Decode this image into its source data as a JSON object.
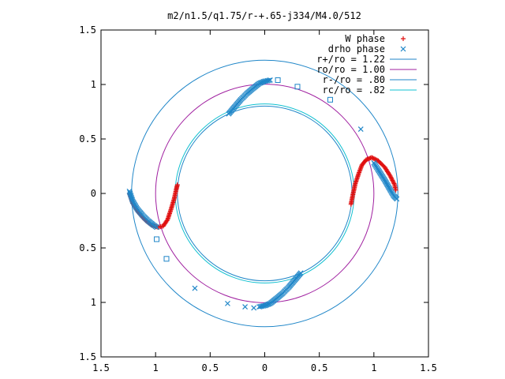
{
  "chart_data": {
    "type": "scatter",
    "title": "m2/n1.5/q1.75/r-+.65-j334/M4.0/512",
    "xlabel": "",
    "ylabel": "",
    "xlim": [
      -1.5,
      1.5
    ],
    "ylim": [
      -1.5,
      1.5
    ],
    "x_ticks": [
      -1.5,
      -1,
      -0.5,
      0,
      0.5,
      1,
      1.5
    ],
    "y_ticks": [
      -1.5,
      -1,
      -0.5,
      0,
      0.5,
      1,
      1.5
    ],
    "x_tick_labels": [
      "1.5",
      "1",
      "0.5",
      "0",
      "0.5",
      "1",
      "1.5"
    ],
    "y_tick_labels": [
      "1.5",
      "1",
      "0.5",
      "0",
      "0.5",
      "1",
      "1.5"
    ],
    "grid": false,
    "legend_position": "top-right",
    "circles": [
      {
        "name": "r+/ro = 1.22",
        "radius": 1.22,
        "color": "#1f86c8"
      },
      {
        "name": "ro/ro = 1.00",
        "radius": 1.0,
        "color": "#a020a0"
      },
      {
        "name": "r-/ro = .80",
        "radius": 0.8,
        "color": "#1f86c8"
      },
      {
        "name": "rc/ro = .82",
        "radius": 0.82,
        "color": "#10c0d0"
      }
    ],
    "series": [
      {
        "name": "W phase",
        "marker": "plus",
        "color": "#e01010",
        "segments": [
          [
            [
              -1.24,
              0.0
            ],
            [
              -1.21,
              -0.09
            ],
            [
              -1.16,
              -0.17
            ],
            [
              -1.1,
              -0.24
            ],
            [
              -1.04,
              -0.29
            ],
            [
              -0.98,
              -0.31
            ],
            [
              -0.93,
              -0.3
            ],
            [
              -0.89,
              -0.24
            ],
            [
              -0.86,
              -0.15
            ],
            [
              -0.83,
              -0.05
            ],
            [
              -0.81,
              0.04
            ],
            [
              -0.8,
              0.08
            ]
          ],
          [
            [
              0.79,
              -0.1
            ],
            [
              0.81,
              -0.0
            ],
            [
              0.83,
              0.09
            ],
            [
              0.86,
              0.18
            ],
            [
              0.89,
              0.26
            ],
            [
              0.93,
              0.31
            ],
            [
              0.98,
              0.33
            ],
            [
              1.04,
              0.3
            ],
            [
              1.1,
              0.24
            ],
            [
              1.15,
              0.16
            ],
            [
              1.19,
              0.08
            ],
            [
              1.2,
              0.03
            ]
          ]
        ]
      },
      {
        "name": "drho phase",
        "marker": "x",
        "color": "#1f86c8",
        "segments": [
          [
            [
              -1.24,
              0.02
            ],
            [
              -1.21,
              -0.07
            ],
            [
              -1.17,
              -0.14
            ],
            [
              -1.12,
              -0.2
            ],
            [
              -1.07,
              -0.25
            ],
            [
              -1.02,
              -0.29
            ],
            [
              -0.99,
              -0.31
            ]
          ],
          [
            [
              -0.33,
              0.73
            ],
            [
              -0.28,
              0.79
            ],
            [
              -0.22,
              0.86
            ],
            [
              -0.16,
              0.92
            ],
            [
              -0.1,
              0.97
            ],
            [
              -0.05,
              1.01
            ],
            [
              0.0,
              1.03
            ],
            [
              0.05,
              1.04
            ]
          ],
          [
            [
              0.33,
              -0.73
            ],
            [
              0.28,
              -0.79
            ],
            [
              0.22,
              -0.86
            ],
            [
              0.16,
              -0.92
            ],
            [
              0.1,
              -0.97
            ],
            [
              0.05,
              -1.01
            ],
            [
              0.0,
              -1.03
            ],
            [
              -0.05,
              -1.04
            ]
          ],
          [
            [
              1.0,
              0.28
            ],
            [
              1.05,
              0.2
            ],
            [
              1.1,
              0.12
            ],
            [
              1.14,
              0.05
            ],
            [
              1.18,
              -0.02
            ],
            [
              1.21,
              -0.05
            ]
          ]
        ],
        "scatter": [
          [
            0.88,
            0.59
          ],
          [
            -0.64,
            -0.87
          ],
          [
            -0.34,
            -1.01
          ],
          [
            -0.18,
            -1.04
          ],
          [
            -0.1,
            -1.05
          ]
        ]
      },
      {
        "name": "",
        "marker": "square",
        "color": "#1f86c8",
        "points": [
          [
            0.12,
            1.04
          ],
          [
            0.3,
            0.98
          ],
          [
            0.6,
            0.86
          ],
          [
            -0.99,
            -0.42
          ],
          [
            -0.9,
            -0.6
          ]
        ]
      }
    ]
  }
}
